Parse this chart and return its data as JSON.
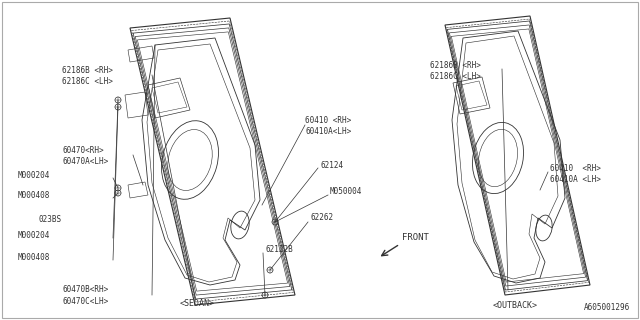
{
  "bg_color": "#ffffff",
  "line_color": "#333333",
  "text_color": "#333333",
  "border_color": "#aaaaaa",
  "part_id": "A605001296",
  "sedan_label": "<SEDAN>",
  "outback_label": "<OUTBACK>",
  "front_label": "FRONT"
}
